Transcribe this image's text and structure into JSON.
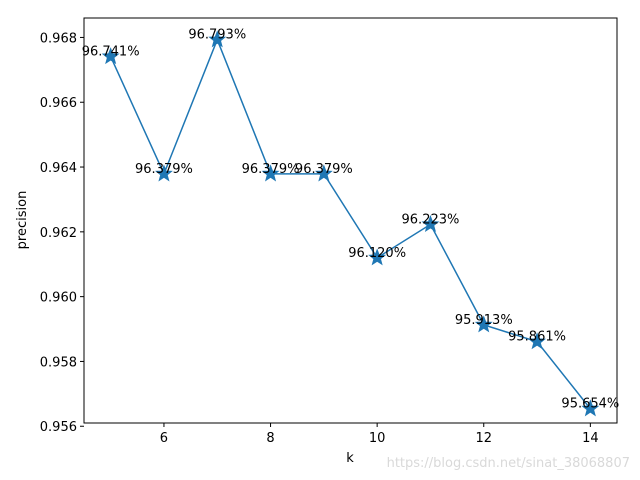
{
  "chart_data": {
    "type": "line",
    "xlabel": "k",
    "ylabel": "precision",
    "xlim": [
      4.5,
      14.5
    ],
    "ylim": [
      0.9561,
      0.9686
    ],
    "x_ticks": [
      6,
      8,
      10,
      12,
      14
    ],
    "y_ticks": [
      0.956,
      0.958,
      0.96,
      0.962,
      0.964,
      0.966,
      0.968
    ],
    "marker": "star",
    "grid": false,
    "series": [
      {
        "color": "#1f77b4",
        "points": [
          {
            "x": 5,
            "y": 0.96741,
            "label": "96.741%"
          },
          {
            "x": 6,
            "y": 0.96379,
            "label": "96.379%"
          },
          {
            "x": 7,
            "y": 0.96793,
            "label": "96.793%"
          },
          {
            "x": 8,
            "y": 0.96379,
            "label": "96.379%"
          },
          {
            "x": 9,
            "y": 0.96379,
            "label": "96.379%"
          },
          {
            "x": 10,
            "y": 0.9612,
            "label": "96.120%"
          },
          {
            "x": 11,
            "y": 0.96223,
            "label": "96.223%"
          },
          {
            "x": 12,
            "y": 0.95913,
            "label": "95.913%"
          },
          {
            "x": 13,
            "y": 0.95861,
            "label": "95.861%"
          },
          {
            "x": 14,
            "y": 0.95654,
            "label": "95.654%"
          }
        ]
      }
    ]
  },
  "watermark": "https://blog.csdn.net/sinat_38068807"
}
